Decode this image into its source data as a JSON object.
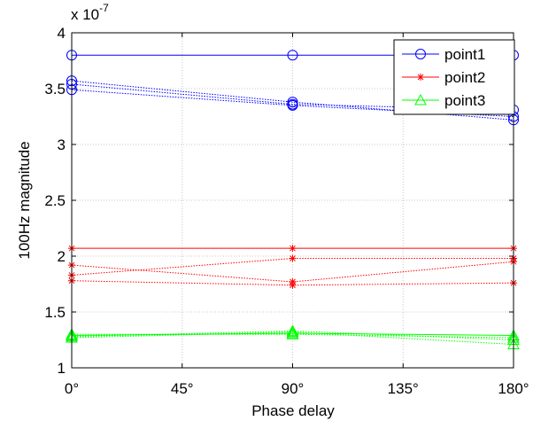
{
  "chart_data": {
    "type": "line",
    "xlabel": "Phase delay",
    "ylabel": "100Hz magnitude",
    "exponent_prefix": "x 10",
    "exponent_power": "-7",
    "x": [
      0,
      90,
      180
    ],
    "xticks": [
      "0°",
      "45°",
      "90°",
      "135°",
      "180°"
    ],
    "xtick_values": [
      0,
      45,
      90,
      135,
      180
    ],
    "yticks": [
      "1",
      "1.5",
      "2",
      "2.5",
      "3",
      "3.5",
      "4"
    ],
    "ytick_values": [
      1,
      1.5,
      2,
      2.5,
      3,
      3.5,
      4
    ],
    "xlim": [
      0,
      180
    ],
    "ylim": [
      1,
      4
    ],
    "grid": true,
    "legend_position": "top-right",
    "series": [
      {
        "name": "point1",
        "color": "#0000ff",
        "marker": "circle",
        "legend": true,
        "values": [
          3.8,
          3.8,
          3.8
        ]
      },
      {
        "color": "#0000ff",
        "marker": "circle",
        "legend": false,
        "values": [
          3.57,
          3.38,
          3.22
        ]
      },
      {
        "color": "#0000ff",
        "marker": "circle",
        "legend": false,
        "values": [
          3.54,
          3.36,
          3.31
        ]
      },
      {
        "color": "#0000ff",
        "marker": "circle",
        "legend": false,
        "values": [
          3.49,
          3.35,
          3.25
        ]
      },
      {
        "name": "point2",
        "color": "#ff0000",
        "marker": "star",
        "legend": true,
        "values": [
          2.07,
          2.07,
          2.07
        ]
      },
      {
        "color": "#ff0000",
        "marker": "star",
        "legend": false,
        "values": [
          1.92,
          1.77,
          1.95
        ]
      },
      {
        "color": "#ff0000",
        "marker": "star",
        "legend": false,
        "values": [
          1.83,
          1.98,
          1.98
        ]
      },
      {
        "color": "#ff0000",
        "marker": "star",
        "legend": false,
        "values": [
          1.78,
          1.74,
          1.76
        ]
      },
      {
        "name": "point3",
        "color": "#00ff00",
        "marker": "triangle",
        "legend": true,
        "values": [
          1.29,
          1.31,
          1.29
        ]
      },
      {
        "color": "#00ff00",
        "marker": "triangle",
        "legend": false,
        "values": [
          1.28,
          1.33,
          1.25
        ]
      },
      {
        "color": "#00ff00",
        "marker": "triangle",
        "legend": false,
        "values": [
          1.27,
          1.32,
          1.21
        ]
      },
      {
        "color": "#00ff00",
        "marker": "triangle",
        "legend": false,
        "values": [
          1.3,
          1.3,
          1.27
        ]
      }
    ]
  }
}
